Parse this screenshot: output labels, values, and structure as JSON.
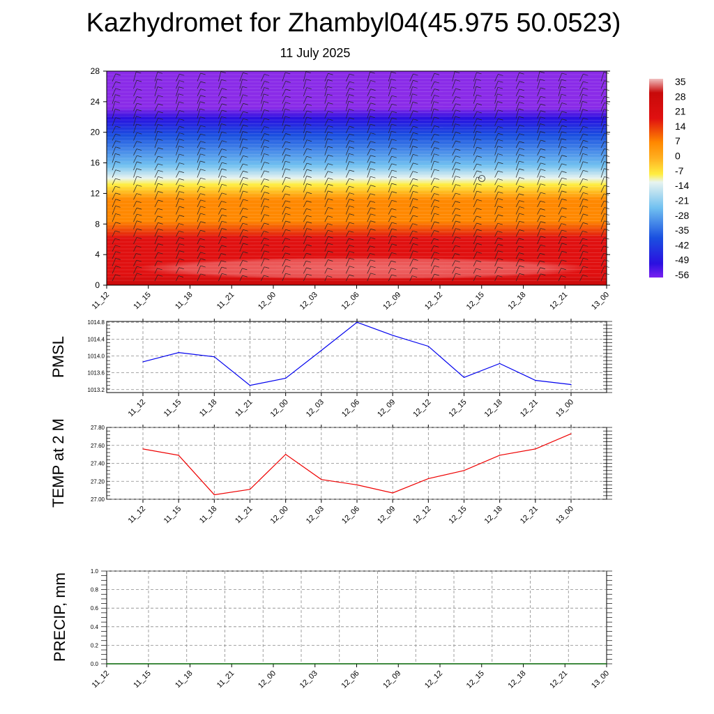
{
  "title": "Kazhydromet for Zhambyl04(45.975 50.0523)",
  "subtitle": "11 July 2025",
  "chart_data": [
    {
      "type": "heatmap",
      "name": "vertical-temperature-wind-section",
      "categories": [
        "11_12",
        "11_15",
        "11_18",
        "11_21",
        "12_00",
        "12_03",
        "12_06",
        "12_09",
        "12_12",
        "12_15",
        "12_18",
        "12_21",
        "13_00"
      ],
      "ylim": [
        0,
        28
      ],
      "yticks": [
        0,
        4,
        8,
        12,
        16,
        20,
        24,
        28
      ],
      "colorbar_labels": [
        "35",
        "28",
        "21",
        "14",
        "7",
        "0",
        "-7",
        "-14",
        "-21",
        "-28",
        "-35",
        "-42",
        "-49",
        "-56"
      ],
      "colors": {
        "bottom": "#c80a0a",
        "warm_core": "#ee6a6a",
        "red": "#e01010",
        "orange": "#ff8800",
        "yellow": "#ffee40",
        "pale": "#e8f4f0",
        "light_blue": "#70c0f0",
        "blue": "#1a50e0",
        "deep_blue": "#2a10e0",
        "purple": "#8a2be8"
      }
    },
    {
      "type": "line",
      "ylabel": "PMSL",
      "categories": [
        "11_12",
        "11_15",
        "11_18",
        "11_21",
        "12_00",
        "12_03",
        "12_06",
        "12_09",
        "12_12",
        "12_15",
        "12_18",
        "12_21",
        "13_00"
      ],
      "values": [
        1013.86,
        1014.08,
        1013.98,
        1013.3,
        1013.47,
        1014.13,
        1014.8,
        1014.49,
        1014.23,
        1013.49,
        1013.82,
        1013.42,
        1013.32
      ],
      "ylim": [
        1013.13,
        1014.82
      ],
      "yticks": [
        "1013.2",
        "1013.6",
        "1014.0",
        "1014.4",
        "1014.8"
      ],
      "color": "#0000ee"
    },
    {
      "type": "line",
      "ylabel": "TEMP at 2 M",
      "categories": [
        "11_12",
        "11_15",
        "11_18",
        "11_21",
        "12_00",
        "12_03",
        "12_06",
        "12_09",
        "12_12",
        "12_15",
        "12_18",
        "12_21",
        "13_00"
      ],
      "values": [
        27.56,
        27.49,
        27.05,
        27.11,
        27.5,
        27.22,
        27.16,
        27.07,
        27.23,
        27.32,
        27.49,
        27.56,
        27.73
      ],
      "ylim": [
        27.0,
        27.8
      ],
      "yticks": [
        "27.00",
        "27.20",
        "27.40",
        "27.60",
        "27.80"
      ],
      "color": "#ee0000"
    },
    {
      "type": "line",
      "ylabel": "PRECIP, mm",
      "categories": [
        "11_12",
        "11_15",
        "11_18",
        "11_21",
        "12_00",
        "12_03",
        "12_06",
        "12_09",
        "12_12",
        "12_15",
        "12_18",
        "12_21",
        "13_00"
      ],
      "values": [
        0,
        0,
        0,
        0,
        0,
        0,
        0,
        0,
        0,
        0,
        0,
        0,
        0
      ],
      "ylim": [
        0,
        1
      ],
      "yticks": [
        "0.0",
        "0.2",
        "0.4",
        "0.6",
        "0.8",
        "1.0"
      ],
      "color": "#006400"
    }
  ]
}
